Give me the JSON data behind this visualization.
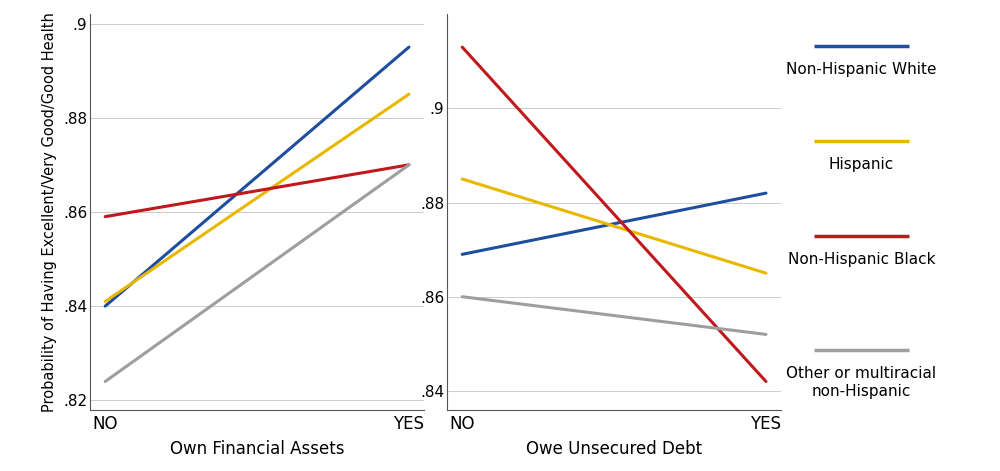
{
  "plot1": {
    "xlabel": "Own Financial Assets",
    "x_ticks": [
      0,
      1
    ],
    "x_tick_labels": [
      "NO",
      "YES"
    ],
    "ylim": [
      0.818,
      0.902
    ],
    "yticks": [
      0.82,
      0.84,
      0.86,
      0.88,
      0.9
    ],
    "ytick_labels": [
      ".82",
      ".84",
      ".86",
      ".88",
      ".9"
    ],
    "series": {
      "Non-Hispanic White": {
        "color": "#1f4e9f",
        "x": [
          0,
          1
        ],
        "y": [
          0.84,
          0.895
        ]
      },
      "Hispanic": {
        "color": "#e8b800",
        "x": [
          0,
          1
        ],
        "y": [
          0.841,
          0.885
        ]
      },
      "Non-Hispanic Black": {
        "color": "#c0181c",
        "x": [
          0,
          1
        ],
        "y": [
          0.859,
          0.87
        ]
      },
      "Other or multiracial non-Hispanic": {
        "color": "#9e9e9e",
        "x": [
          0,
          1
        ],
        "y": [
          0.824,
          0.87
        ]
      }
    }
  },
  "plot2": {
    "xlabel": "Owe Unsecured Debt",
    "x_ticks": [
      0,
      1
    ],
    "x_tick_labels": [
      "NO",
      "YES"
    ],
    "ylim": [
      0.836,
      0.92
    ],
    "yticks": [
      0.84,
      0.86,
      0.88,
      0.9
    ],
    "ytick_labels": [
      ".84",
      ".86",
      ".88",
      ".9"
    ],
    "series": {
      "Non-Hispanic White": {
        "color": "#1f4e9f",
        "x": [
          0,
          1
        ],
        "y": [
          0.869,
          0.882
        ]
      },
      "Hispanic": {
        "color": "#e8b800",
        "x": [
          0,
          1
        ],
        "y": [
          0.885,
          0.865
        ]
      },
      "Non-Hispanic Black": {
        "color": "#c0181c",
        "x": [
          0,
          1
        ],
        "y": [
          0.913,
          0.842
        ]
      },
      "Other or multiracial non-Hispanic": {
        "color": "#9e9e9e",
        "x": [
          0,
          1
        ],
        "y": [
          0.86,
          0.852
        ]
      }
    }
  },
  "ylabel": "Probability of Having Excellent/Very Good/Good Health",
  "legend_entries": [
    {
      "label": "Non-Hispanic White",
      "color": "#1f4e9f"
    },
    {
      "label": "Hispanic",
      "color": "#e8b800"
    },
    {
      "label": "Non-Hispanic Black",
      "color": "#c0181c"
    },
    {
      "label": "Other or multiracial\nnon-Hispanic",
      "color": "#9e9e9e"
    }
  ],
  "line_width": 2.2,
  "background_color": "#ffffff"
}
